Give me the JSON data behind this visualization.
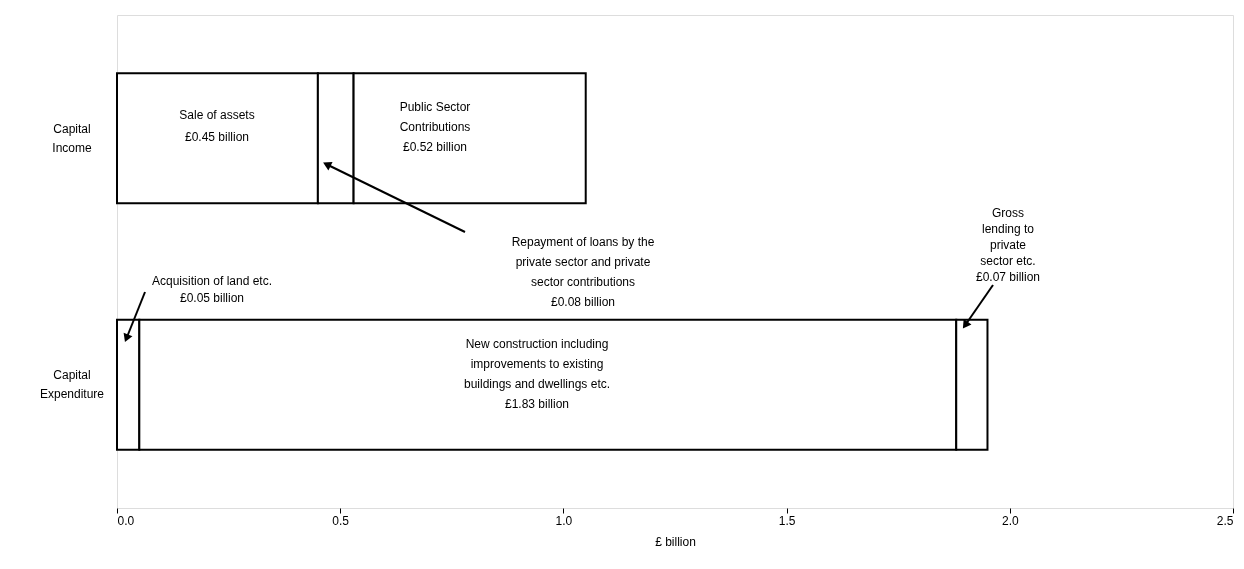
{
  "chart_data": {
    "type": "bar",
    "orientation": "horizontal",
    "stacked": true,
    "categories": [
      "Capital Income",
      "Capital Expenditure"
    ],
    "xlabel": "£ billion",
    "xlim": [
      0,
      2.5
    ],
    "xticks": [
      {
        "value": 0,
        "label": "0.0"
      },
      {
        "value": 0.5,
        "label": "0.5"
      },
      {
        "value": 1,
        "label": "1.0"
      },
      {
        "value": 1.5,
        "label": "1.5"
      },
      {
        "value": 2,
        "label": "2.0"
      },
      {
        "value": 2.5,
        "label": "2.5"
      }
    ],
    "series": [
      {
        "color": "#ffffff",
        "values": [
          0.45,
          0.05
        ]
      },
      {
        "color": "#ffffff",
        "values": [
          0.08,
          1.83
        ]
      },
      {
        "color": "#ffffff",
        "values": [
          0.52,
          0.07
        ]
      }
    ],
    "annotations": [
      "Sale of assets\n\n£0.45 billion",
      "Public Sector\nContributions\n\n£0.52 billion",
      "Repayment of loans by the\nprivate sector and private\nsector contributions\n£0.08 billion",
      "Acquisition of land etc.\n£0.05 billion",
      "New construction including\nimprovements to existing\nbuildings and dwellings etc.\n\n£1.83 billion",
      "Gross\nlending to\nprivate\nsector etc.\n£0.07 billion"
    ]
  }
}
